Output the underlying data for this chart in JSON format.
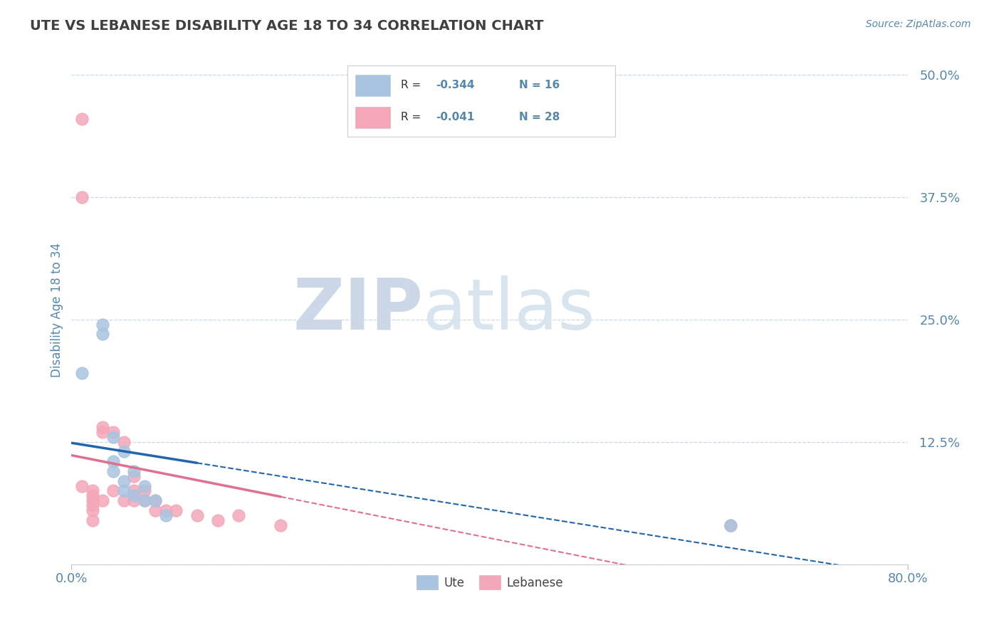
{
  "title": "UTE VS LEBANESE DISABILITY AGE 18 TO 34 CORRELATION CHART",
  "source_text": "Source: ZipAtlas.com",
  "ylabel": "Disability Age 18 to 34",
  "xlim": [
    0.0,
    0.8
  ],
  "ylim": [
    0.0,
    0.52
  ],
  "yticks": [
    0.0,
    0.125,
    0.25,
    0.375,
    0.5
  ],
  "ytick_labels": [
    "",
    "12.5%",
    "25.0%",
    "37.5%",
    "50.0%"
  ],
  "xticks": [
    0.0,
    0.8
  ],
  "xtick_labels": [
    "0.0%",
    "80.0%"
  ],
  "ute_color": "#a8c4e0",
  "leb_color": "#f4a7b9",
  "ute_line_color": "#2166ac",
  "leb_line_color": "#e07090",
  "background_color": "#ffffff",
  "grid_color": "#c8d8e8",
  "title_color": "#404040",
  "axis_label_color": "#5588aa",
  "ute_scatter_x": [
    0.01,
    0.03,
    0.03,
    0.04,
    0.04,
    0.04,
    0.05,
    0.05,
    0.05,
    0.06,
    0.06,
    0.07,
    0.07,
    0.08,
    0.09,
    0.63
  ],
  "ute_scatter_y": [
    0.195,
    0.245,
    0.235,
    0.13,
    0.105,
    0.095,
    0.115,
    0.085,
    0.075,
    0.095,
    0.07,
    0.08,
    0.065,
    0.065,
    0.05,
    0.04
  ],
  "leb_scatter_x": [
    0.01,
    0.01,
    0.01,
    0.02,
    0.02,
    0.02,
    0.02,
    0.02,
    0.02,
    0.03,
    0.03,
    0.03,
    0.04,
    0.04,
    0.05,
    0.05,
    0.06,
    0.06,
    0.06,
    0.07,
    0.07,
    0.08,
    0.08,
    0.09,
    0.1,
    0.12,
    0.14,
    0.16,
    0.2,
    0.63
  ],
  "leb_scatter_y": [
    0.455,
    0.375,
    0.08,
    0.075,
    0.07,
    0.065,
    0.06,
    0.055,
    0.045,
    0.14,
    0.135,
    0.065,
    0.135,
    0.075,
    0.125,
    0.065,
    0.09,
    0.075,
    0.065,
    0.075,
    0.065,
    0.065,
    0.055,
    0.055,
    0.055,
    0.05,
    0.045,
    0.05,
    0.04,
    0.04
  ],
  "bottom_legend_ute": "Ute",
  "bottom_legend_leb": "Lebanese"
}
